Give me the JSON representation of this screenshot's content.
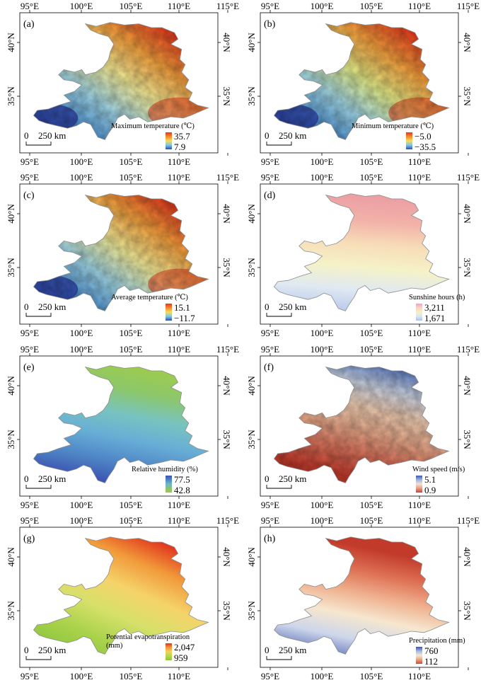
{
  "lon_labels": [
    "95°E",
    "100°E",
    "105°E",
    "110°E",
    "115°E"
  ],
  "lat_labels": [
    "40°N",
    "35°N"
  ],
  "scale_zero": "0",
  "scale_text": "250 km",
  "panels": [
    {
      "id": "a",
      "label": "(a)",
      "title": "Maximum temperature (℃)",
      "title2": "",
      "max": "35.7",
      "min": "7.9",
      "colors": [
        "#2c3fa0",
        "#4a8fd0",
        "#9fd5e6",
        "#f6ef9a",
        "#f7a23e",
        "#e63a1c"
      ],
      "legend_colors": [
        "#e8351a",
        "#f28a2e",
        "#f6dc5a",
        "#7ec7e8",
        "#2f4faa"
      ]
    },
    {
      "id": "b",
      "label": "(b)",
      "title": "Minimum temperature (℃)",
      "title2": "",
      "max": "−5.0",
      "min": "−35.5",
      "colors": [
        "#2c3fa0",
        "#4a8fd0",
        "#9fd5e6",
        "#e6ef8a",
        "#f7a23e",
        "#e63a1c"
      ],
      "legend_colors": [
        "#e8351a",
        "#f28a2e",
        "#f6dc5a",
        "#7ec7e8",
        "#2f4faa"
      ]
    },
    {
      "id": "c",
      "label": "(c)",
      "title": "Average temperature (℃)",
      "title2": "",
      "max": "15.1",
      "min": "−11.7",
      "colors": [
        "#2c3fa0",
        "#4a8fd0",
        "#9fd5e6",
        "#f6ef9a",
        "#f7a23e",
        "#e63a1c"
      ],
      "legend_colors": [
        "#e8351a",
        "#f28a2e",
        "#f6dc5a",
        "#7ec7e8",
        "#2f4faa"
      ]
    },
    {
      "id": "d",
      "label": "(d)",
      "title": "Sunshine hours (h)",
      "title2": "",
      "max": "3,211",
      "min": "1,671",
      "colors": [
        "#b7c8ec",
        "#dfe9f2",
        "#f5f2c8",
        "#f7ddb8",
        "#f2b2a8",
        "#eca0a4"
      ],
      "legend_colors": [
        "#f0a6b6",
        "#f5d6c8",
        "#f6efc2",
        "#d8e8f2",
        "#aac0ec"
      ]
    },
    {
      "id": "e",
      "label": "(e)",
      "title": "Relative humidity (%)",
      "title2": "",
      "max": "77.5",
      "min": "42.8",
      "colors": [
        "#3a4fae",
        "#4f86c6",
        "#67aed6",
        "#78c3c0",
        "#8cc76a",
        "#9ccb4e"
      ],
      "legend_colors": [
        "#3a4fae",
        "#4f86c6",
        "#6eb7c8",
        "#88c36e",
        "#9ccb4e"
      ]
    },
    {
      "id": "f",
      "label": "(f)",
      "title": "Wind speed (m/s)",
      "title2": "",
      "max": "5.1",
      "min": "0.9",
      "colors": [
        "#c0392b",
        "#d9705a",
        "#e8a98a",
        "#f0cdb2",
        "#c8d2e6",
        "#4a6cb8"
      ],
      "legend_colors": [
        "#3b5bb0",
        "#9fb4dc",
        "#f3e2d4",
        "#e59a86",
        "#c8463a"
      ]
    },
    {
      "id": "g",
      "label": "(g)",
      "title": "Potential evapotranspiration",
      "title2": "(mm)",
      "max": "2,047",
      "min": "959",
      "colors": [
        "#8dc53e",
        "#a9d24a",
        "#d6e06a",
        "#f5d36a",
        "#f19a3a",
        "#e0301c"
      ],
      "legend_colors": [
        "#e0301c",
        "#f19a3a",
        "#f2d25e",
        "#b6d64a",
        "#8dc53e"
      ]
    },
    {
      "id": "h",
      "label": "(h)",
      "title": "Precipitation (mm)",
      "title2": "",
      "max": "760",
      "min": "112",
      "colors": [
        "#c13a2a",
        "#dd6f52",
        "#efb08e",
        "#f6e7cf",
        "#cdd6ea",
        "#5d72b8"
      ],
      "legend_colors": [
        "#3d53a8",
        "#a7b6dc",
        "#f3ead8",
        "#eaa27e",
        "#c84a34"
      ]
    }
  ]
}
